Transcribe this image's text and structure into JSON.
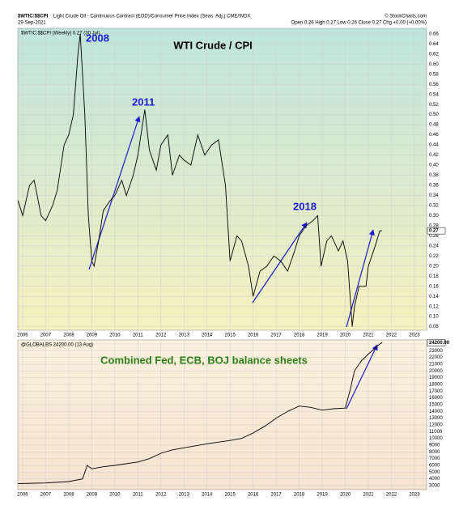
{
  "header": {
    "symbol": "$WTIC:$$CPI",
    "description": "Light Crude Oil - Continuous Contract (EOD)/Consumer Price Index (Seas. Adj.) CME/INDX",
    "date": "29-Sep-2021",
    "ohlc": "Open 0.26  High 0.27  Low 0.26  Close 0.27  Chg +0.00 (+0.00%)",
    "credit": "© StockCharts.com"
  },
  "chart_data": [
    {
      "type": "line",
      "title": "WTI Crude / CPI",
      "legend": "$WTIC:$$CPI (Weekly) 0.27 (30 Jul)",
      "last_label": "0.27",
      "annotations": [
        "2008",
        "2011",
        "2018"
      ],
      "color": "#000000",
      "x": [
        2005.8,
        2006.0,
        2006.3,
        2006.5,
        2006.8,
        2007.0,
        2007.3,
        2007.5,
        2007.8,
        2008.0,
        2008.2,
        2008.4,
        2008.5,
        2008.7,
        2008.85,
        2009.0,
        2009.1,
        2009.3,
        2009.5,
        2009.8,
        2010.0,
        2010.3,
        2010.5,
        2010.8,
        2011.0,
        2011.3,
        2011.5,
        2011.8,
        2012.0,
        2012.3,
        2012.5,
        2012.8,
        2013.0,
        2013.3,
        2013.6,
        2013.9,
        2014.2,
        2014.5,
        2014.8,
        2015.0,
        2015.3,
        2015.5,
        2015.8,
        2016.0,
        2016.3,
        2016.6,
        2016.9,
        2017.2,
        2017.5,
        2017.8,
        2018.0,
        2018.3,
        2018.6,
        2018.8,
        2018.95,
        2019.2,
        2019.4,
        2019.7,
        2019.9,
        2020.1,
        2020.3,
        2020.4,
        2020.6,
        2020.9,
        2021.0,
        2021.3,
        2021.5,
        2021.6
      ],
      "values": [
        0.33,
        0.3,
        0.36,
        0.37,
        0.3,
        0.29,
        0.32,
        0.35,
        0.44,
        0.46,
        0.5,
        0.62,
        0.66,
        0.5,
        0.3,
        0.21,
        0.2,
        0.25,
        0.31,
        0.33,
        0.34,
        0.37,
        0.34,
        0.38,
        0.42,
        0.51,
        0.43,
        0.39,
        0.44,
        0.46,
        0.38,
        0.42,
        0.41,
        0.4,
        0.46,
        0.42,
        0.44,
        0.45,
        0.36,
        0.21,
        0.26,
        0.25,
        0.2,
        0.14,
        0.19,
        0.2,
        0.22,
        0.21,
        0.19,
        0.23,
        0.26,
        0.28,
        0.29,
        0.3,
        0.2,
        0.25,
        0.26,
        0.23,
        0.25,
        0.21,
        0.08,
        0.12,
        0.16,
        0.16,
        0.2,
        0.24,
        0.27,
        0.27
      ],
      "xlim": [
        2005.79,
        2023.53
      ],
      "xticks": [
        2006,
        2007,
        2008,
        2009,
        2010,
        2011,
        2012,
        2013,
        2014,
        2015,
        2016,
        2017,
        2018,
        2019,
        2020,
        2021,
        2022,
        2023
      ],
      "ylim": [
        0.073,
        0.671
      ],
      "yticks": [
        0.08,
        {
          "value": 0.1,
          "label": "0.10"
        },
        0.12,
        0.14,
        0.16,
        0.18,
        {
          "value": 0.2,
          "label": "0.20"
        },
        0.22,
        0.24,
        0.26,
        0.28,
        {
          "value": 0.3,
          "label": "0.30"
        },
        0.32,
        0.34,
        0.36,
        0.38,
        {
          "value": 0.4,
          "label": "0.40"
        },
        0.42,
        0.44,
        0.46,
        0.48,
        {
          "value": 0.5,
          "label": "0.50"
        },
        0.52,
        0.54,
        0.56,
        0.58,
        {
          "value": 0.6,
          "label": "0.60"
        },
        0.62,
        0.64,
        0.66
      ],
      "grid": true
    },
    {
      "type": "line",
      "title": "Combined Fed, ECB, BOJ balance sheets",
      "legend": "@GLOBALBS 24200.00 (13 Aug)",
      "last_label": "24200.00",
      "color": "#000000",
      "x": [
        2005.8,
        2007.0,
        2008.0,
        2008.6,
        2008.8,
        2009.0,
        2009.5,
        2010.0,
        2011.0,
        2011.5,
        2012.0,
        2012.5,
        2013.0,
        2014.0,
        2015.0,
        2015.5,
        2016.0,
        2016.5,
        2017.0,
        2017.5,
        2018.0,
        2018.5,
        2019.0,
        2019.5,
        2020.0,
        2020.2,
        2020.4,
        2020.7,
        2021.0,
        2021.5,
        2021.6
      ],
      "values": [
        3300,
        3400,
        3600,
        4000,
        6000,
        5500,
        5800,
        6000,
        6500,
        7000,
        7800,
        8300,
        8600,
        9200,
        9700,
        10000,
        10800,
        11800,
        13000,
        14000,
        14800,
        14600,
        14200,
        14400,
        14500,
        17000,
        20000,
        21500,
        22500,
        24000,
        24200
      ],
      "xlim": [
        2005.79,
        2023.53
      ],
      "xticks": [
        2006,
        2007,
        2008,
        2009,
        2010,
        2011,
        2012,
        2013,
        2014,
        2015,
        2016,
        2017,
        2018,
        2019,
        2020,
        2021,
        2022,
        2023
      ],
      "ylim": [
        2400,
        24600
      ],
      "yticks": [
        3000,
        4000,
        5000,
        6000,
        7000,
        8000,
        9000,
        10000,
        11000,
        12000,
        13000,
        14000,
        15000,
        16000,
        17000,
        18000,
        19000,
        20000,
        21000,
        22000,
        23000,
        24000
      ],
      "grid": true
    }
  ]
}
